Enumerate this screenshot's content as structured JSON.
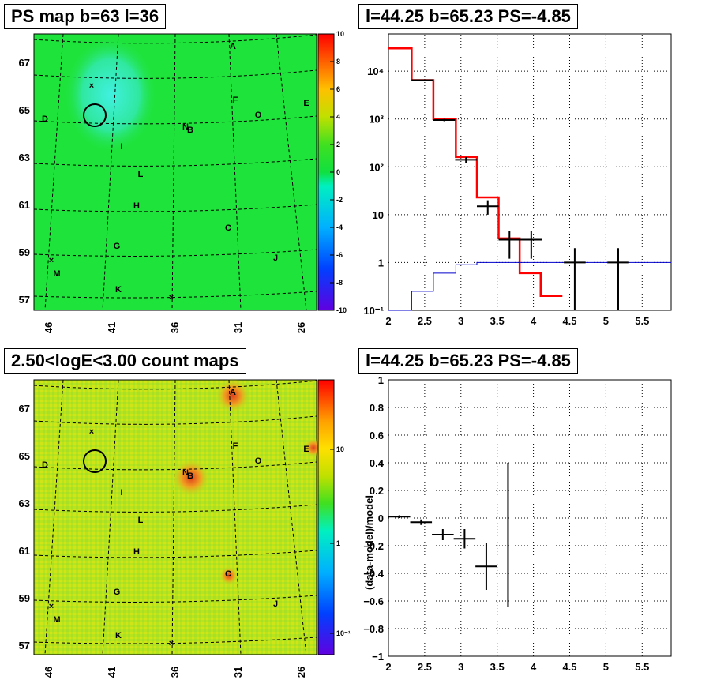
{
  "tl": {
    "title": "PS map b=63 l=36",
    "yticks": [
      "67",
      "65",
      "63",
      "61",
      "59",
      "57"
    ],
    "xticks": [
      "46",
      "41",
      "36",
      "31",
      "26"
    ],
    "cbar_ticks": [
      "10",
      "8",
      "6",
      "4",
      "2",
      "0",
      "-2",
      "-4",
      "-6",
      "-8",
      "-10"
    ],
    "sources": [
      {
        "n": "A",
        "c": "A"
      },
      {
        "n": "F",
        "c": "F"
      },
      {
        "n": "E",
        "c": "E"
      },
      {
        "n": "O",
        "c": "O"
      },
      {
        "n": "D",
        "c": "D"
      },
      {
        "n": "N",
        "c": "N"
      },
      {
        "n": "B",
        "c": "B"
      },
      {
        "n": "I",
        "c": "I"
      },
      {
        "n": "L",
        "c": "L"
      },
      {
        "n": "H",
        "c": "H"
      },
      {
        "n": "C",
        "c": "C"
      },
      {
        "n": "G",
        "c": "G"
      },
      {
        "n": "J",
        "c": "J"
      },
      {
        "n": "M",
        "c": "M"
      },
      {
        "n": "K",
        "c": "K"
      }
    ],
    "cross_marker": "×"
  },
  "tr": {
    "title": "l=44.25 b=65.23 PS=-4.85",
    "yticks": [
      "10⁴",
      "10³",
      "10²",
      "10",
      "1",
      "10⁻¹"
    ],
    "xticks": [
      "2",
      "2.5",
      "3",
      "3.5",
      "4",
      "4.5",
      "5",
      "5.5"
    ]
  },
  "bl": {
    "title": "2.50<logE<3.00 count maps",
    "yticks": [
      "67",
      "65",
      "63",
      "61",
      "59",
      "57"
    ],
    "xticks": [
      "46",
      "41",
      "36",
      "31",
      "26"
    ],
    "cbar_ticks": [
      "10",
      "1",
      "10⁻¹"
    ]
  },
  "br": {
    "title": "l=44.25 b=65.23 PS=-4.85",
    "ylabel": "(data-model)/model",
    "yticks": [
      "1",
      "0.8",
      "0.6",
      "0.4",
      "0.2",
      "0",
      "−0.2",
      "−0.4",
      "−0.6",
      "−0.8",
      "−1"
    ],
    "xticks": [
      "2",
      "2.5",
      "3",
      "3.5",
      "4",
      "4.5",
      "5",
      "5.5"
    ]
  },
  "chart_data": [
    {
      "type": "heatmap",
      "title": "PS map b=63 l=36",
      "xlabel": "",
      "ylabel": "",
      "xlim": [
        47,
        25
      ],
      "ylim": [
        56.5,
        68.5
      ],
      "zlim": [
        -10,
        10
      ],
      "grid": true,
      "colors": {
        "background": "#1ee33a",
        "hotspot": "#30f0c8"
      }
    },
    {
      "type": "line",
      "title": "l=44.25 b=65.23 PS=-4.85",
      "xlabel": "",
      "ylabel": "",
      "xlim": [
        2,
        5.9
      ],
      "ylim": [
        0.1,
        60000
      ],
      "yscale": "log",
      "grid": true,
      "series": [
        {
          "color": "#ff0000",
          "kind": "step",
          "x": [
            2.0,
            2.32,
            2.62,
            2.93,
            3.22,
            3.52,
            3.81,
            4.1,
            4.4
          ],
          "y": [
            30000,
            6500,
            1000,
            160,
            23,
            3.2,
            0.6,
            0.2,
            0.1
          ]
        },
        {
          "color": "#0000cc",
          "kind": "step",
          "x": [
            2.0,
            2.32,
            2.62,
            2.93,
            3.22,
            3.52,
            5.9
          ],
          "y": [
            0.1,
            0.25,
            0.6,
            0.9,
            1.0,
            1.0,
            1.0
          ]
        },
        {
          "color": "#000000",
          "kind": "errorbar",
          "points": [
            {
              "x": 2.47,
              "y": 6500,
              "xerr": 0.15,
              "ylo": 6300,
              "yhi": 6700
            },
            {
              "x": 2.77,
              "y": 950,
              "xerr": 0.15,
              "ylo": 900,
              "yhi": 1000
            },
            {
              "x": 3.07,
              "y": 140,
              "xerr": 0.15,
              "ylo": 120,
              "yhi": 160
            },
            {
              "x": 3.37,
              "y": 15,
              "xerr": 0.15,
              "ylo": 10,
              "yhi": 20
            },
            {
              "x": 3.67,
              "y": 3,
              "xerr": 0.15,
              "ylo": 1.2,
              "yhi": 4.5
            },
            {
              "x": 3.97,
              "y": 3,
              "xerr": 0.15,
              "ylo": 1.2,
              "yhi": 4.5
            },
            {
              "x": 4.57,
              "y": 1,
              "xerr": 0.15,
              "ylo": 0.1,
              "yhi": 2
            },
            {
              "x": 5.17,
              "y": 1,
              "xerr": 0.15,
              "ylo": 0.1,
              "yhi": 2
            }
          ]
        }
      ]
    },
    {
      "type": "heatmap",
      "title": "2.50<logE<3.00 count maps",
      "xlabel": "",
      "ylabel": "",
      "xlim": [
        47,
        25
      ],
      "ylim": [
        56.5,
        68.5
      ],
      "zscale": "log",
      "grid": true,
      "colors": {
        "background": "#b8e41c",
        "hotspot": "#e0501e"
      }
    },
    {
      "type": "scatter",
      "title": "l=44.25 b=65.23 PS=-4.85",
      "xlabel": "",
      "ylabel": "(data-model)/model",
      "xlim": [
        2,
        5.9
      ],
      "ylim": [
        -1,
        1
      ],
      "grid": true,
      "points": [
        {
          "x": 2.15,
          "y": 0.01,
          "xerr": 0.15,
          "yerr": 0.01
        },
        {
          "x": 2.45,
          "y": -0.03,
          "xerr": 0.15,
          "yerr": 0.02
        },
        {
          "x": 2.75,
          "y": -0.12,
          "xerr": 0.15,
          "yerr": 0.04
        },
        {
          "x": 3.05,
          "y": -0.15,
          "xerr": 0.15,
          "yerr": 0.07
        },
        {
          "x": 3.35,
          "y": -0.35,
          "xerr": 0.15,
          "yerr": 0.17
        },
        {
          "x": 3.65,
          "y": -0.12,
          "xerr": 0.0,
          "yerr": 0.52
        }
      ]
    }
  ]
}
